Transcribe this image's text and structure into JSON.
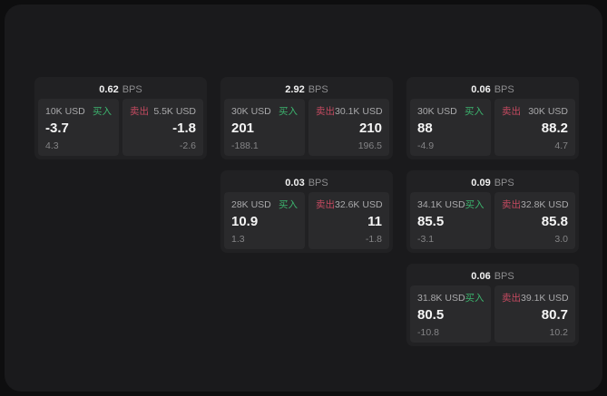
{
  "labels": {
    "buy": "买入",
    "sell": "卖出",
    "bps_unit": "BPS"
  },
  "colors": {
    "buy_green": "#3cb46e",
    "sell_red": "#c44a60",
    "window_bg": "#1a1a1c",
    "card_bg": "#212123",
    "panel_bg": "#2a2a2c"
  },
  "cards": [
    {
      "bps": "0.62",
      "buy": {
        "volume": "10K USD",
        "price": "-3.7",
        "change": "4.3"
      },
      "sell": {
        "volume": "5.5K USD",
        "price": "-1.8",
        "change": "-2.6"
      }
    },
    {
      "bps": "2.92",
      "buy": {
        "volume": "30K USD",
        "price": "201",
        "change": "-188.1"
      },
      "sell": {
        "volume": "30.1K USD",
        "price": "210",
        "change": "196.5"
      }
    },
    {
      "bps": "0.06",
      "buy": {
        "volume": "30K USD",
        "price": "88",
        "change": "-4.9"
      },
      "sell": {
        "volume": "30K USD",
        "price": "88.2",
        "change": "4.7"
      }
    },
    {
      "bps": "0.03",
      "buy": {
        "volume": "28K USD",
        "price": "10.9",
        "change": "1.3"
      },
      "sell": {
        "volume": "32.6K USD",
        "price": "11",
        "change": "-1.8"
      }
    },
    {
      "bps": "0.09",
      "buy": {
        "volume": "34.1K USD",
        "price": "85.5",
        "change": "-3.1"
      },
      "sell": {
        "volume": "32.8K USD",
        "price": "85.8",
        "change": "3.0"
      }
    },
    {
      "bps": "0.06",
      "buy": {
        "volume": "31.8K USD",
        "price": "80.5",
        "change": "-10.8"
      },
      "sell": {
        "volume": "39.1K USD",
        "price": "80.7",
        "change": "10.2"
      }
    }
  ]
}
